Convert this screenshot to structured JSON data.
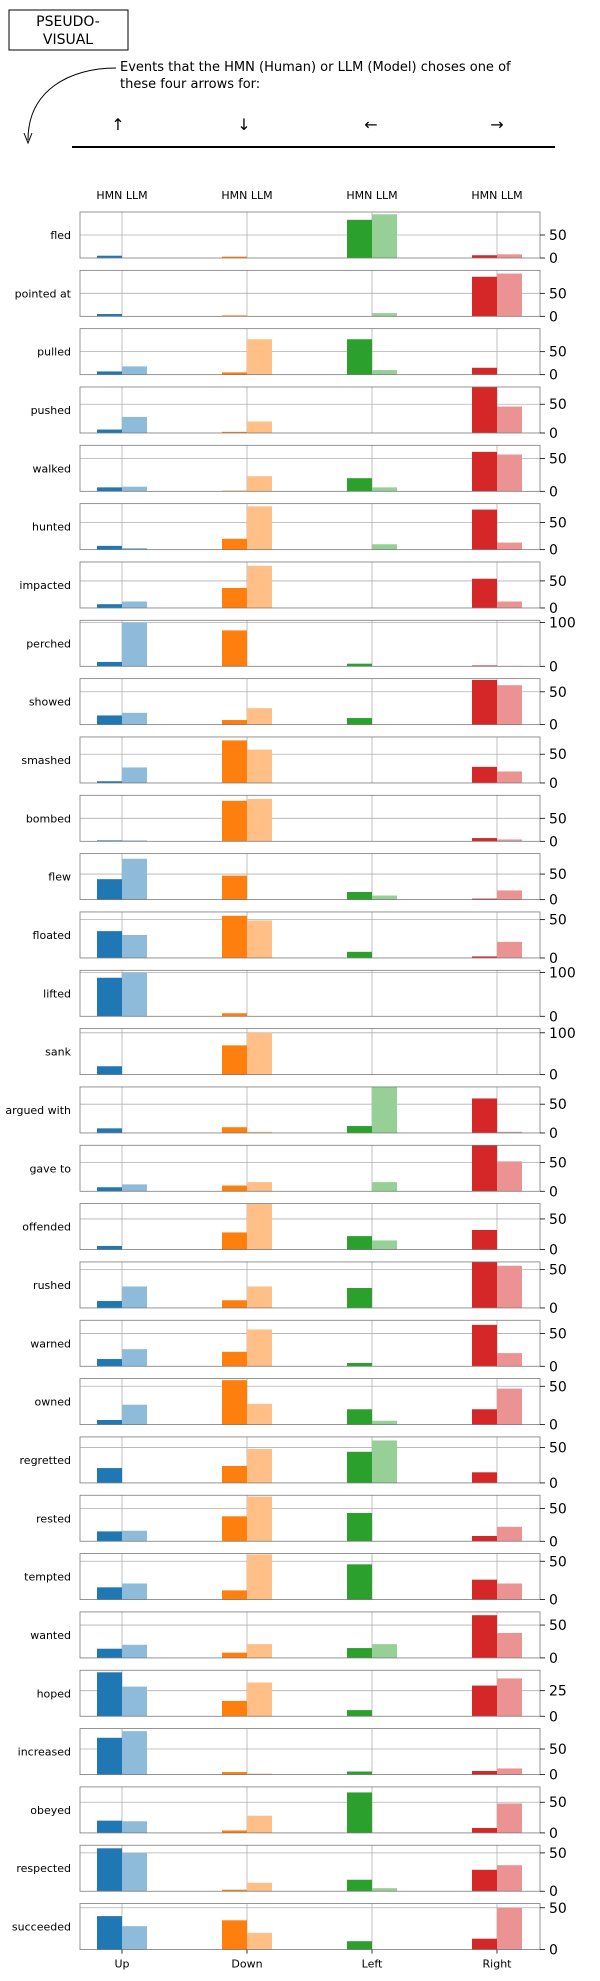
{
  "header": {
    "badge_line1": "PSEUDO-",
    "badge_line2": "VISUAL",
    "caption_line1": "Events that the HMN (Human) or LLM (Model) choses one of",
    "caption_line2": "these four arrows for:",
    "arrows": [
      "↑",
      "↓",
      "←",
      "→"
    ]
  },
  "chart_data": {
    "type": "bar",
    "directions": [
      "Up",
      "Down",
      "Left",
      "Right"
    ],
    "bar_labels": [
      "HMN",
      "LLM"
    ],
    "series": [
      {
        "name": "HMN",
        "colors": [
          "#1f77b4",
          "#ff7f0e",
          "#2ca02c",
          "#d62728"
        ]
      },
      {
        "name": "LLM",
        "colors": [
          "#8fbbda",
          "#ffbf86",
          "#96d096",
          "#eb9393"
        ]
      }
    ],
    "rows": [
      {
        "event": "fled",
        "ymax": 100,
        "ticks": [
          "50",
          "0"
        ],
        "tickvals": [
          50,
          0
        ],
        "hmn": [
          5,
          3,
          83,
          6
        ],
        "llm": [
          0,
          0,
          95,
          8
        ]
      },
      {
        "event": "pointed at",
        "ymax": 100,
        "ticks": [
          "50",
          "0"
        ],
        "tickvals": [
          50,
          0
        ],
        "hmn": [
          5,
          2,
          0,
          86
        ],
        "llm": [
          0,
          0,
          7,
          93
        ]
      },
      {
        "event": "pulled",
        "ymax": 100,
        "ticks": [
          "50",
          "0"
        ],
        "tickvals": [
          50,
          0
        ],
        "hmn": [
          7,
          5,
          77,
          15
        ],
        "llm": [
          18,
          77,
          10,
          0
        ]
      },
      {
        "event": "pushed",
        "ymax": 80,
        "ticks": [
          "50",
          "0"
        ],
        "tickvals": [
          50,
          0
        ],
        "hmn": [
          6,
          2,
          0,
          80
        ],
        "llm": [
          28,
          20,
          0,
          46
        ]
      },
      {
        "event": "walked",
        "ymax": 70,
        "ticks": [
          "50",
          "0"
        ],
        "tickvals": [
          50,
          0
        ],
        "hmn": [
          6,
          1,
          20,
          60
        ],
        "llm": [
          7,
          23,
          6,
          56
        ]
      },
      {
        "event": "hunted",
        "ymax": 85,
        "ticks": [
          "50",
          "0"
        ],
        "tickvals": [
          50,
          0
        ],
        "hmn": [
          7,
          20,
          0,
          74
        ],
        "llm": [
          3,
          80,
          10,
          13
        ]
      },
      {
        "event": "impacted",
        "ymax": 85,
        "ticks": [
          "50",
          "0"
        ],
        "tickvals": [
          50,
          0
        ],
        "hmn": [
          7,
          37,
          0,
          54
        ],
        "llm": [
          12,
          78,
          0,
          12
        ]
      },
      {
        "event": "perched",
        "ymax": 105,
        "ticks": [
          "100",
          "0"
        ],
        "tickvals": [
          100,
          0
        ],
        "hmn": [
          10,
          82,
          6,
          2
        ],
        "llm": [
          100,
          0,
          0,
          1
        ]
      },
      {
        "event": "showed",
        "ymax": 70,
        "ticks": [
          "50",
          "0"
        ],
        "tickvals": [
          50,
          0
        ],
        "hmn": [
          14,
          7,
          10,
          68
        ],
        "llm": [
          18,
          25,
          0,
          60
        ]
      },
      {
        "event": "smashed",
        "ymax": 80,
        "ticks": [
          "50",
          "0"
        ],
        "tickvals": [
          50,
          0
        ],
        "hmn": [
          3,
          74,
          0,
          28
        ],
        "llm": [
          27,
          58,
          0,
          20
        ]
      },
      {
        "event": "bombed",
        "ymax": 100,
        "ticks": [
          "50",
          "0"
        ],
        "tickvals": [
          50,
          0
        ],
        "hmn": [
          2,
          88,
          0,
          7
        ],
        "llm": [
          2,
          92,
          0,
          4
        ]
      },
      {
        "event": "flew",
        "ymax": 90,
        "ticks": [
          "50",
          "0"
        ],
        "tickvals": [
          50,
          0
        ],
        "hmn": [
          40,
          47,
          15,
          2
        ],
        "llm": [
          80,
          0,
          8,
          18
        ]
      },
      {
        "event": "floated",
        "ymax": 60,
        "ticks": [
          "50",
          "0"
        ],
        "tickvals": [
          50,
          0
        ],
        "hmn": [
          35,
          55,
          8,
          2
        ],
        "llm": [
          30,
          49,
          0,
          21
        ]
      },
      {
        "event": "lifted",
        "ymax": 105,
        "ticks": [
          "100",
          "0"
        ],
        "tickvals": [
          100,
          0
        ],
        "hmn": [
          88,
          7,
          0,
          0
        ],
        "llm": [
          100,
          0,
          0,
          0
        ]
      },
      {
        "event": "sank",
        "ymax": 110,
        "ticks": [
          "100",
          "0"
        ],
        "tickvals": [
          100,
          0
        ],
        "hmn": [
          20,
          70,
          0,
          0
        ],
        "llm": [
          0,
          100,
          0,
          0
        ]
      },
      {
        "event": "argued with",
        "ymax": 80,
        "ticks": [
          "50",
          "0"
        ],
        "tickvals": [
          50,
          0
        ],
        "hmn": [
          8,
          10,
          12,
          60
        ],
        "llm": [
          0,
          2,
          80,
          2
        ]
      },
      {
        "event": "gave to",
        "ymax": 80,
        "ticks": [
          "50",
          "0"
        ],
        "tickvals": [
          50,
          0
        ],
        "hmn": [
          7,
          10,
          0,
          80
        ],
        "llm": [
          12,
          16,
          16,
          52
        ]
      },
      {
        "event": "offended",
        "ymax": 75,
        "ticks": [
          "50",
          "0"
        ],
        "tickvals": [
          50,
          0
        ],
        "hmn": [
          6,
          28,
          22,
          32
        ],
        "llm": [
          0,
          75,
          15,
          0
        ]
      },
      {
        "event": "rushed",
        "ymax": 60,
        "ticks": [
          "50",
          "0"
        ],
        "tickvals": [
          50,
          0
        ],
        "hmn": [
          9,
          10,
          26,
          60
        ],
        "llm": [
          28,
          28,
          0,
          55
        ]
      },
      {
        "event": "warned",
        "ymax": 70,
        "ticks": [
          "50",
          "0"
        ],
        "tickvals": [
          50,
          0
        ],
        "hmn": [
          11,
          22,
          5,
          63
        ],
        "llm": [
          26,
          56,
          0,
          20
        ]
      },
      {
        "event": "owned",
        "ymax": 60,
        "ticks": [
          "50",
          "0"
        ],
        "tickvals": [
          50,
          0
        ],
        "hmn": [
          6,
          58,
          20,
          20
        ],
        "llm": [
          26,
          27,
          5,
          47
        ]
      },
      {
        "event": "regretted",
        "ymax": 65,
        "ticks": [
          "50",
          "0"
        ],
        "tickvals": [
          50,
          0
        ],
        "hmn": [
          21,
          24,
          44,
          15
        ],
        "llm": [
          0,
          48,
          60,
          0
        ]
      },
      {
        "event": "rested",
        "ymax": 70,
        "ticks": [
          "50",
          "0"
        ],
        "tickvals": [
          50,
          0
        ],
        "hmn": [
          15,
          38,
          43,
          8
        ],
        "llm": [
          16,
          68,
          0,
          22
        ]
      },
      {
        "event": "tempted",
        "ymax": 60,
        "ticks": [
          "50",
          "0"
        ],
        "tickvals": [
          50,
          0
        ],
        "hmn": [
          16,
          12,
          46,
          26
        ],
        "llm": [
          21,
          59,
          0,
          21
        ]
      },
      {
        "event": "wanted",
        "ymax": 70,
        "ticks": [
          "50",
          "0"
        ],
        "tickvals": [
          50,
          0
        ],
        "hmn": [
          14,
          8,
          15,
          65
        ],
        "llm": [
          20,
          21,
          21,
          38
        ]
      },
      {
        "event": "hoped",
        "ymax": 45,
        "ticks": [
          "25",
          "0"
        ],
        "tickvals": [
          25,
          0
        ],
        "hmn": [
          43,
          15,
          6,
          30
        ],
        "llm": [
          29,
          33,
          0,
          37
        ]
      },
      {
        "event": "increased",
        "ymax": 90,
        "ticks": [
          "50",
          "0"
        ],
        "tickvals": [
          50,
          0
        ],
        "hmn": [
          72,
          5,
          6,
          7
        ],
        "llm": [
          85,
          2,
          0,
          12
        ]
      },
      {
        "event": "obeyed",
        "ymax": 75,
        "ticks": [
          "50",
          "0"
        ],
        "tickvals": [
          50,
          0
        ],
        "hmn": [
          20,
          4,
          66,
          8
        ],
        "llm": [
          19,
          28,
          0,
          48
        ]
      },
      {
        "event": "respected",
        "ymax": 60,
        "ticks": [
          "50",
          "0"
        ],
        "tickvals": [
          50,
          0
        ],
        "hmn": [
          56,
          2,
          15,
          28
        ],
        "llm": [
          50,
          11,
          4,
          34
        ]
      },
      {
        "event": "succeeded",
        "ymax": 55,
        "ticks": [
          "50",
          "0"
        ],
        "tickvals": [
          50,
          0
        ],
        "hmn": [
          40,
          35,
          10,
          13
        ],
        "llm": [
          28,
          20,
          0,
          50
        ]
      }
    ]
  }
}
